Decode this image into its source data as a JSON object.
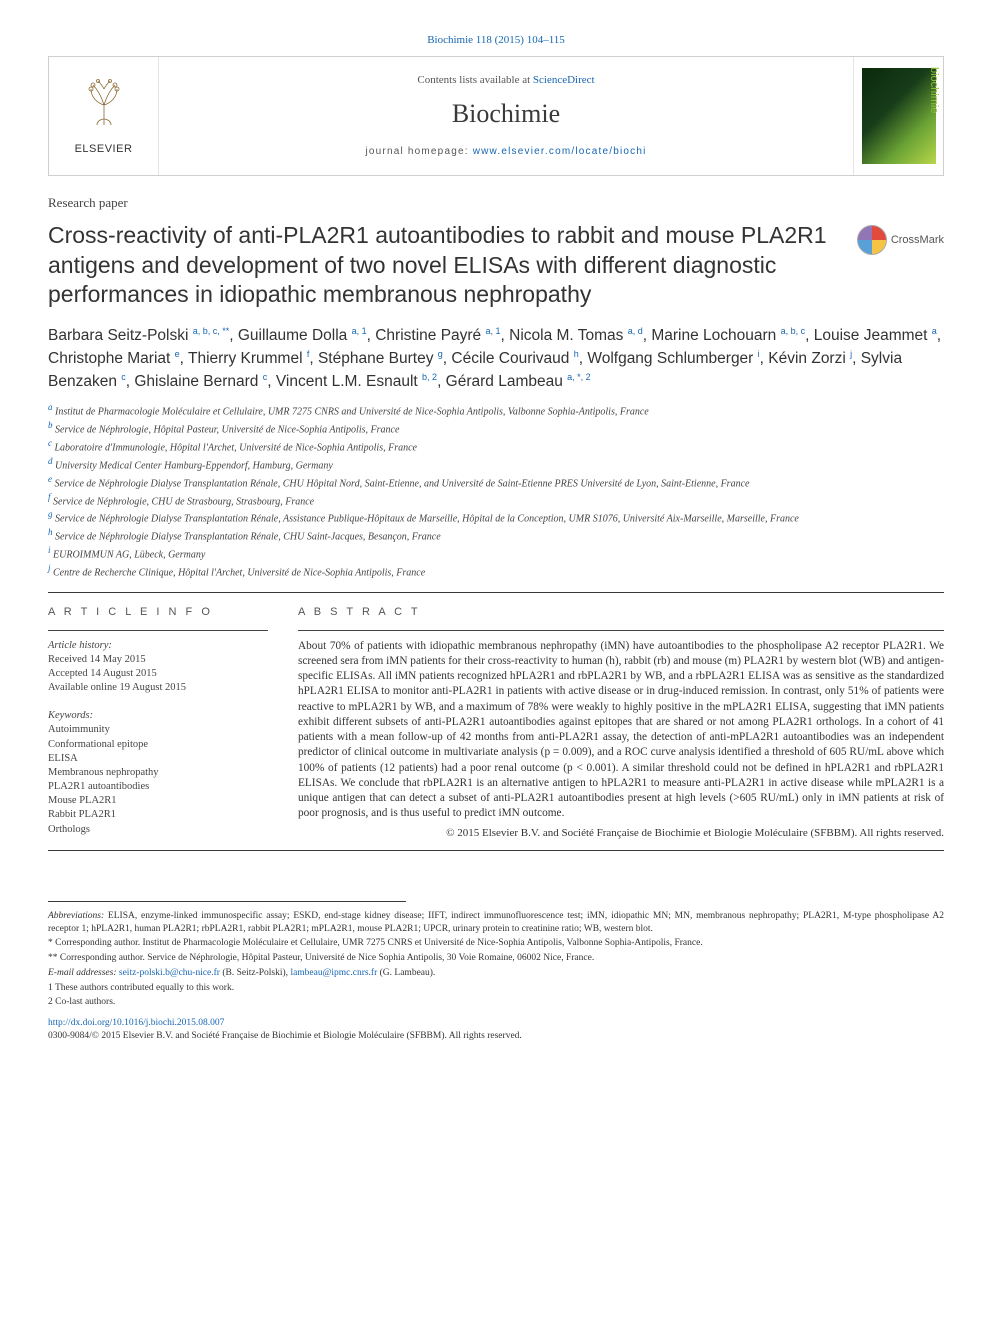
{
  "top_ref": {
    "text": "Biochimie 118 (2015) 104–115",
    "color": "#1766b3"
  },
  "header": {
    "contents_prefix": "Contents lists available at ",
    "contents_link": "ScienceDirect",
    "journal": "Biochimie",
    "home_prefix": "journal homepage: ",
    "home_link": "www.elsevier.com/locate/biochi",
    "elsevier_label": "ELSEVIER",
    "cover_side_label": "biochimie"
  },
  "paper_type": "Research paper",
  "title": "Cross-reactivity of anti-PLA2R1 autoantibodies to rabbit and mouse PLA2R1 antigens and development of two novel ELISAs with different diagnostic performances in idiopathic membranous nephropathy",
  "crossmark_label": "CrossMark",
  "authors_html": "Barbara Seitz-Polski <sup>a, b, c, **</sup>, Guillaume Dolla <sup>a, 1</sup>, Christine Payré <sup>a, 1</sup>, Nicola M. Tomas <sup>a, d</sup>, Marine Lochouarn <sup>a, b, c</sup>, Louise Jeammet <sup>a</sup>, Christophe Mariat <sup>e</sup>, Thierry Krummel <sup>f</sup>, Stéphane Burtey <sup>g</sup>, Cécile Courivaud <sup>h</sup>, Wolfgang Schlumberger <sup>i</sup>, Kévin Zorzi <sup>j</sup>, Sylvia Benzaken <sup>c</sup>, Ghislaine Bernard <sup>c</sup>, Vincent L.M. Esnault <sup>b, 2</sup>, Gérard Lambeau <sup>a, *, 2</sup>",
  "affiliations": [
    "a Institut de Pharmacologie Moléculaire et Cellulaire, UMR 7275 CNRS and Université de Nice-Sophia Antipolis, Valbonne Sophia-Antipolis, France",
    "b Service de Néphrologie, Hôpital Pasteur, Université de Nice-Sophia Antipolis, France",
    "c Laboratoire d'Immunologie, Hôpital l'Archet, Université de Nice-Sophia Antipolis, France",
    "d University Medical Center Hamburg-Eppendorf, Hamburg, Germany",
    "e Service de Néphrologie Dialyse Transplantation Rénale, CHU Hôpital Nord, Saint-Etienne, and Université de Saint-Etienne PRES Université de Lyon, Saint-Etienne, France",
    "f Service de Néphrologie, CHU de Strasbourg, Strasbourg, France",
    "g Service de Néphrologie Dialyse Transplantation Rénale, Assistance Publique-Hôpitaux de Marseille, Hôpital de la Conception, UMR S1076, Université Aix-Marseille, Marseille, France",
    "h Service de Néphrologie Dialyse Transplantation Rénale, CHU Saint-Jacques, Besançon, France",
    "i EUROIMMUN AG, Lübeck, Germany",
    "j Centre de Recherche Clinique, Hôpital l'Archet, Université de Nice-Sophia Antipolis, France"
  ],
  "article_info": {
    "heading": "A R T I C L E  I N F O",
    "history_label": "Article history:",
    "history": [
      "Received 14 May 2015",
      "Accepted 14 August 2015",
      "Available online 19 August 2015"
    ],
    "keywords_label": "Keywords:",
    "keywords": [
      "Autoimmunity",
      "Conformational epitope",
      "ELISA",
      "Membranous nephropathy",
      "PLA2R1 autoantibodies",
      "Mouse PLA2R1",
      "Rabbit PLA2R1",
      "Orthologs"
    ]
  },
  "abstract": {
    "heading": "A B S T R A C T",
    "body": "About 70% of patients with idiopathic membranous nephropathy (iMN) have autoantibodies to the phospholipase A2 receptor PLA2R1. We screened sera from iMN patients for their cross-reactivity to human (h), rabbit (rb) and mouse (m) PLA2R1 by western blot (WB) and antigen-specific ELISAs. All iMN patients recognized hPLA2R1 and rbPLA2R1 by WB, and a rbPLA2R1 ELISA was as sensitive as the standardized hPLA2R1 ELISA to monitor anti-PLA2R1 in patients with active disease or in drug-induced remission. In contrast, only 51% of patients were reactive to mPLA2R1 by WB, and a maximum of 78% were weakly to highly positive in the mPLA2R1 ELISA, suggesting that iMN patients exhibit different subsets of anti-PLA2R1 autoantibodies against epitopes that are shared or not among PLA2R1 orthologs. In a cohort of 41 patients with a mean follow-up of 42 months from anti-PLA2R1 assay, the detection of anti-mPLA2R1 autoantibodies was an independent predictor of clinical outcome in multivariate analysis (p = 0.009), and a ROC curve analysis identified a threshold of 605 RU/mL above which 100% of patients (12 patients) had a poor renal outcome (p < 0.001). A similar threshold could not be defined in hPLA2R1 and rbPLA2R1 ELISAs. We conclude that rbPLA2R1 is an alternative antigen to hPLA2R1 to measure anti-PLA2R1 in active disease while mPLA2R1 is a unique antigen that can detect a subset of anti-PLA2R1 autoantibodies present at high levels (>605 RU/mL) only in iMN patients at risk of poor prognosis, and is thus useful to predict iMN outcome.",
    "copyright": "© 2015 Elsevier B.V. and Société Française de Biochimie et Biologie Moléculaire (SFBBM). All rights reserved."
  },
  "footer": {
    "abbrev_label": "Abbreviations:",
    "abbrev_text": " ELISA, enzyme-linked immunospecific assay; ESKD, end-stage kidney disease; IIFT, indirect immunofluorescence test; iMN, idiopathic MN; MN, membranous nephropathy; PLA2R1, M-type phospholipase A2 receptor 1; hPLA2R1, human PLA2R1; rbPLA2R1, rabbit PLA2R1; mPLA2R1, mouse PLA2R1; UPCR, urinary protein to creatinine ratio; WB, western blot.",
    "corr1": "* Corresponding author. Institut de Pharmacologie Moléculaire et Cellulaire, UMR 7275 CNRS et Université de Nice-Sophia Antipolis, Valbonne Sophia-Antipolis, France.",
    "corr2": "** Corresponding author. Service de Néphrologie, Hôpital Pasteur, Université de Nice Sophia Antipolis, 30 Voie Romaine, 06002 Nice, France.",
    "email_label": "E-mail addresses: ",
    "email1": "seitz-polski.b@chu-nice.fr",
    "email1_who": " (B. Seitz-Polski), ",
    "email2": "lambeau@ipmc.cnrs.fr",
    "email2_who": " (G. Lambeau).",
    "note1": "1  These authors contributed equally to this work.",
    "note2": "2  Co-last authors.",
    "doi": "http://dx.doi.org/10.1016/j.biochi.2015.08.007",
    "issn_line": "0300-9084/© 2015 Elsevier B.V. and Société Française de Biochimie et Biologie Moléculaire (SFBBM). All rights reserved."
  },
  "colors": {
    "link": "#1766b3",
    "rule": "#3a3a3a",
    "text": "#2b2b2b"
  }
}
